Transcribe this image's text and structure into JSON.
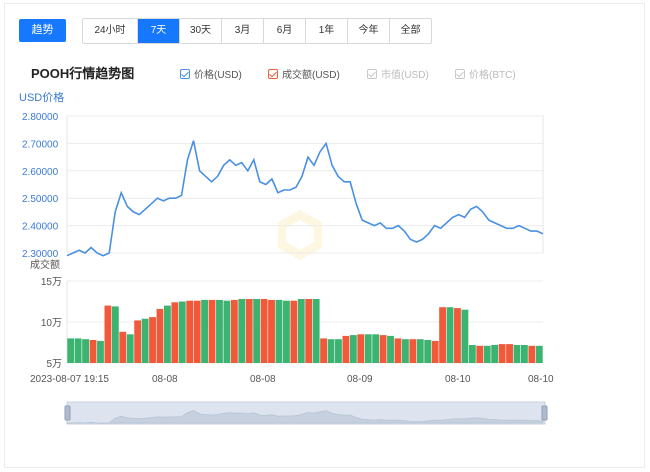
{
  "toolbar": {
    "trend_label": "趋势",
    "tabs": [
      "24小时",
      "7天",
      "30天",
      "3月",
      "6月",
      "1年",
      "今年",
      "全部"
    ],
    "active_tab": "7天"
  },
  "header": {
    "title": "POOH行情趋势图"
  },
  "legend": [
    {
      "label": "价格(USD)",
      "color": "#4a90e2",
      "checked": true
    },
    {
      "label": "成交额(USD)",
      "color": "#ef5b3d",
      "checked": true
    },
    {
      "label": "市值(USD)",
      "color": "#c8c8c8",
      "checked": false
    },
    {
      "label": "价格(BTC)",
      "color": "#c8c8c8",
      "checked": false
    }
  ],
  "colors": {
    "accent": "#1677ff",
    "price_line": "#4a90e2",
    "volume_up": "#3cb371",
    "volume_down": "#f05a3a"
  },
  "chart_data": [
    {
      "type": "line",
      "ylabel": "USD价格",
      "ylim": [
        2.3,
        2.8
      ],
      "yticks": [
        "2.30000",
        "2.40000",
        "2.50000",
        "2.60000",
        "2.70000",
        "2.80000"
      ],
      "x_labels": [
        "2023-08-07 19:15",
        "08-08",
        "08-08",
        "08-09",
        "08-10",
        "08-10"
      ],
      "grid": true,
      "series": [
        {
          "name": "价格(USD)",
          "values": [
            2.29,
            2.3,
            2.31,
            2.3,
            2.32,
            2.3,
            2.29,
            2.3,
            2.45,
            2.52,
            2.47,
            2.45,
            2.44,
            2.46,
            2.48,
            2.5,
            2.49,
            2.5,
            2.5,
            2.51,
            2.64,
            2.71,
            2.6,
            2.58,
            2.56,
            2.58,
            2.62,
            2.64,
            2.62,
            2.63,
            2.6,
            2.64,
            2.56,
            2.55,
            2.57,
            2.52,
            2.53,
            2.53,
            2.54,
            2.58,
            2.65,
            2.62,
            2.67,
            2.7,
            2.62,
            2.58,
            2.56,
            2.56,
            2.48,
            2.42,
            2.41,
            2.4,
            2.41,
            2.39,
            2.39,
            2.4,
            2.38,
            2.35,
            2.34,
            2.35,
            2.37,
            2.4,
            2.39,
            2.41,
            2.43,
            2.44,
            2.43,
            2.46,
            2.47,
            2.45,
            2.42,
            2.41,
            2.4,
            2.39,
            2.39,
            2.4,
            2.39,
            2.38,
            2.38,
            2.37
          ]
        }
      ]
    },
    {
      "type": "bar",
      "ylabel": "成交额",
      "ylim": [
        5,
        15
      ],
      "yticks": [
        "5万",
        "10万",
        "15万"
      ],
      "series": [
        {
          "name": "成交额(USD)",
          "values": [
            8.0,
            8.0,
            7.9,
            7.8,
            7.7,
            12.0,
            11.9,
            8.8,
            8.5,
            10.2,
            10.4,
            10.6,
            11.6,
            12.0,
            12.4,
            12.5,
            12.6,
            12.6,
            12.7,
            12.7,
            12.7,
            12.6,
            12.7,
            12.8,
            12.8,
            12.8,
            12.8,
            12.7,
            12.7,
            12.6,
            12.6,
            12.8,
            12.8,
            12.8,
            8.0,
            7.9,
            7.9,
            8.3,
            8.4,
            8.5,
            8.5,
            8.5,
            8.4,
            8.3,
            8.0,
            7.9,
            7.9,
            7.9,
            7.8,
            7.7,
            11.8,
            11.8,
            11.7,
            11.5,
            7.2,
            7.1,
            7.1,
            7.2,
            7.3,
            7.3,
            7.2,
            7.2,
            7.1,
            7.1
          ],
          "up": [
            true,
            true,
            true,
            false,
            true,
            false,
            true,
            false,
            true,
            false,
            true,
            false,
            false,
            true,
            false,
            true,
            false,
            false,
            true,
            false,
            true,
            true,
            false,
            true,
            false,
            true,
            false,
            false,
            true,
            true,
            false,
            true,
            false,
            true,
            false,
            true,
            true,
            false,
            true,
            false,
            true,
            true,
            false,
            true,
            false,
            true,
            false,
            true,
            true,
            false,
            false,
            true,
            false,
            true,
            true,
            false,
            true,
            true,
            false,
            false,
            true,
            true,
            false,
            true
          ]
        }
      ]
    }
  ]
}
